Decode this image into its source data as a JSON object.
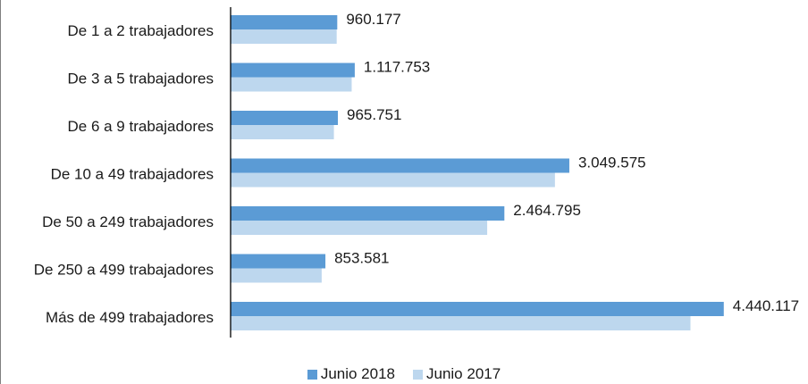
{
  "chart_data": {
    "type": "bar",
    "orientation": "horizontal",
    "categories": [
      "De 1 a 2 trabajadores",
      "De 3 a 5 trabajadores",
      "De 6 a 9 trabajadores",
      "De 10 a 49 trabajadores",
      "De  50 a 249 trabajadores",
      "De 250 a 499 trabajadores",
      "Más de 499 trabajadores"
    ],
    "series": [
      {
        "name": "Junio 2018",
        "color": "#5b9bd5",
        "values": [
          960177,
          1117753,
          965751,
          3049575,
          2464795,
          853581,
          4440117
        ],
        "value_labels": [
          "960.177",
          "1.117.753",
          "965.751",
          "3.049.575",
          "2.464.795",
          "853.581",
          "4.440.117"
        ]
      },
      {
        "name": "Junio 2017",
        "color": "#bdd7ee",
        "values": [
          955000,
          1090000,
          930000,
          2920000,
          2310000,
          820000,
          4140000
        ]
      }
    ],
    "xlim": [
      0,
      4450000
    ],
    "grid": false,
    "legend_position": "bottom"
  }
}
